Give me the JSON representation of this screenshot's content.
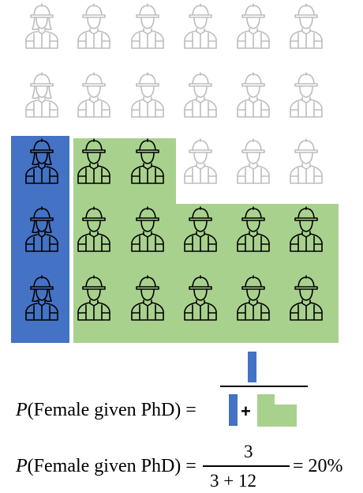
{
  "colors": {
    "female_phd": "#4472c4",
    "male_phd": "#a9d18e",
    "not_phd_stroke": "#bdbdbd",
    "phd_stroke": "#000000"
  },
  "grid": {
    "rows": 5,
    "cols": 6,
    "people": [
      {
        "row": 0,
        "col": 0,
        "gender": "female",
        "phd": false
      },
      {
        "row": 0,
        "col": 1,
        "gender": "male",
        "phd": false
      },
      {
        "row": 0,
        "col": 2,
        "gender": "male",
        "phd": false
      },
      {
        "row": 0,
        "col": 3,
        "gender": "male",
        "phd": false
      },
      {
        "row": 0,
        "col": 4,
        "gender": "male",
        "phd": false
      },
      {
        "row": 0,
        "col": 5,
        "gender": "male",
        "phd": false
      },
      {
        "row": 1,
        "col": 0,
        "gender": "female",
        "phd": false
      },
      {
        "row": 1,
        "col": 1,
        "gender": "male",
        "phd": false
      },
      {
        "row": 1,
        "col": 2,
        "gender": "male",
        "phd": false
      },
      {
        "row": 1,
        "col": 3,
        "gender": "male",
        "phd": false
      },
      {
        "row": 1,
        "col": 4,
        "gender": "male",
        "phd": false
      },
      {
        "row": 1,
        "col": 5,
        "gender": "male",
        "phd": false
      },
      {
        "row": 2,
        "col": 0,
        "gender": "female",
        "phd": true
      },
      {
        "row": 2,
        "col": 1,
        "gender": "male",
        "phd": true
      },
      {
        "row": 2,
        "col": 2,
        "gender": "male",
        "phd": true
      },
      {
        "row": 2,
        "col": 3,
        "gender": "male",
        "phd": false
      },
      {
        "row": 2,
        "col": 4,
        "gender": "male",
        "phd": false
      },
      {
        "row": 2,
        "col": 5,
        "gender": "male",
        "phd": false
      },
      {
        "row": 3,
        "col": 0,
        "gender": "female",
        "phd": true
      },
      {
        "row": 3,
        "col": 1,
        "gender": "male",
        "phd": true
      },
      {
        "row": 3,
        "col": 2,
        "gender": "male",
        "phd": true
      },
      {
        "row": 3,
        "col": 3,
        "gender": "male",
        "phd": true
      },
      {
        "row": 3,
        "col": 4,
        "gender": "male",
        "phd": true
      },
      {
        "row": 3,
        "col": 5,
        "gender": "male",
        "phd": true
      },
      {
        "row": 4,
        "col": 0,
        "gender": "female",
        "phd": true
      },
      {
        "row": 4,
        "col": 1,
        "gender": "male",
        "phd": true
      },
      {
        "row": 4,
        "col": 2,
        "gender": "male",
        "phd": true
      },
      {
        "row": 4,
        "col": 3,
        "gender": "male",
        "phd": true
      },
      {
        "row": 4,
        "col": 4,
        "gender": "male",
        "phd": true
      },
      {
        "row": 4,
        "col": 5,
        "gender": "male",
        "phd": true
      }
    ]
  },
  "equation1": {
    "p": "P",
    "label": "(Female given PhD) =",
    "plus": "+"
  },
  "equation2": {
    "p": "P",
    "label": "(Female given PhD) =",
    "numerator": "3",
    "denominator": "3 + 12",
    "result": "= 20%"
  }
}
